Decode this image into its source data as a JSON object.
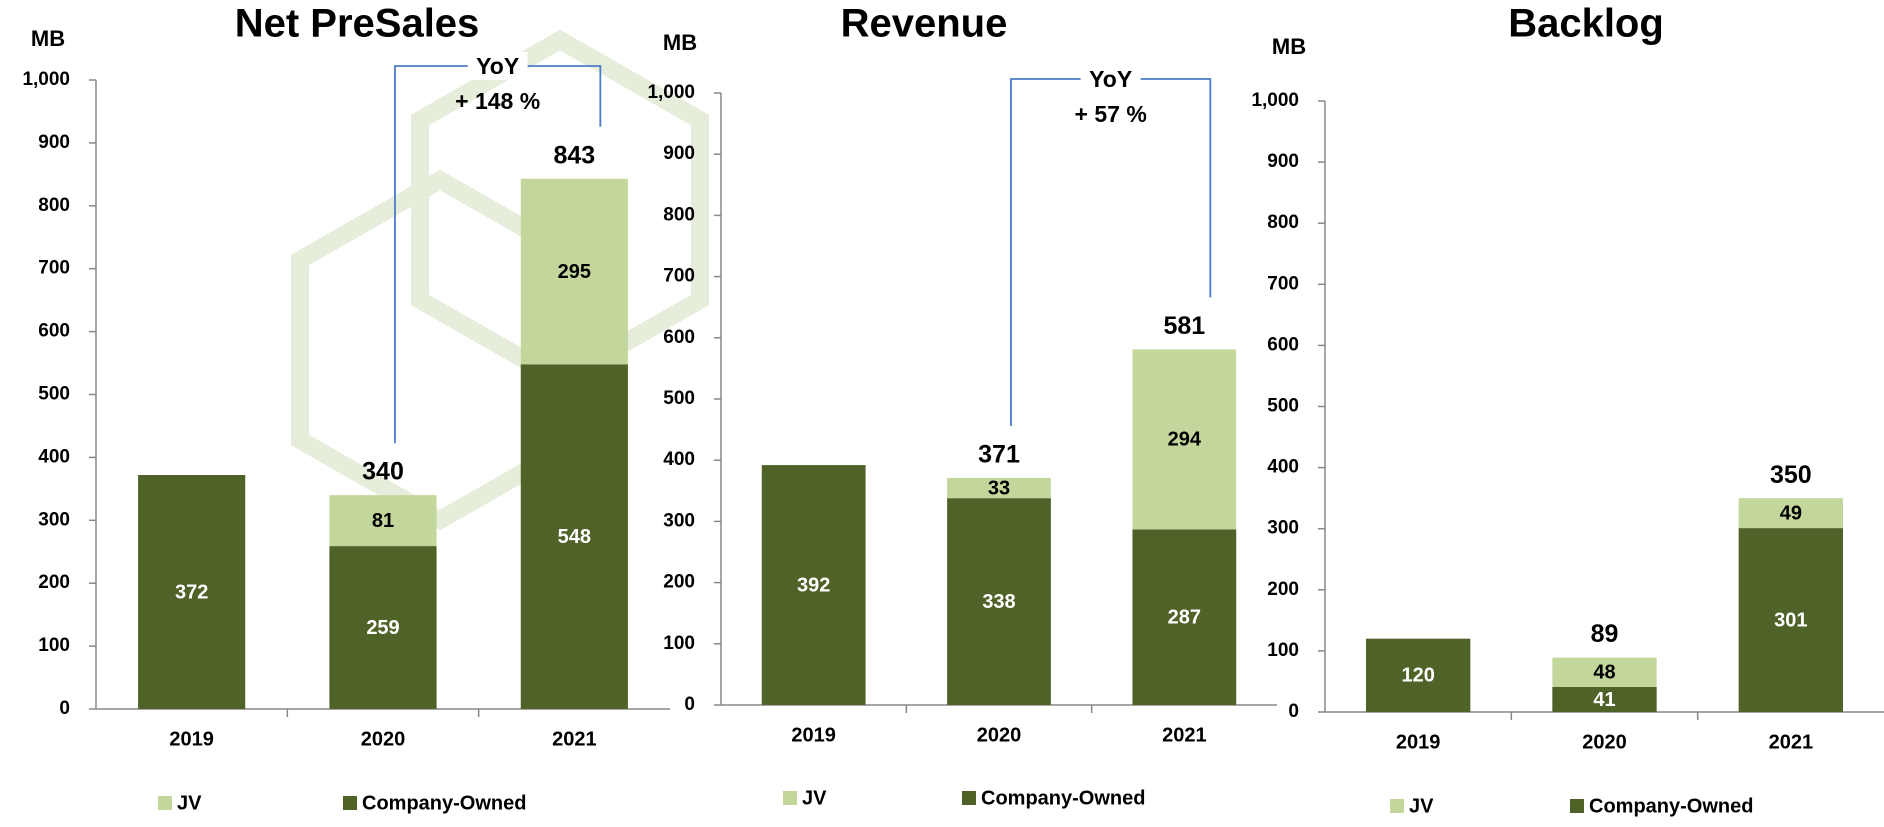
{
  "chart_data": [
    {
      "type": "bar",
      "stacked": true,
      "title": "Net  PreSales",
      "ylabel": "MB",
      "categories": [
        "2019",
        "2020",
        "2021"
      ],
      "series": [
        {
          "name": "JV",
          "color": "#c3d69b",
          "values": [
            null,
            81,
            295
          ]
        },
        {
          "name": "Company-Owned",
          "color": "#4f6228",
          "values": [
            372,
            259,
            548
          ]
        }
      ],
      "totals": [
        null,
        340,
        843
      ],
      "annotation": [
        "YoY",
        "+ 148 %"
      ],
      "ylim": [
        0,
        1000
      ],
      "yticks": [
        0,
        100,
        200,
        300,
        400,
        500,
        600,
        700,
        800,
        900,
        {
          "value": 1000,
          "label": "1,000"
        }
      ]
    },
    {
      "type": "bar",
      "stacked": true,
      "title": "Revenue",
      "ylabel": "MB",
      "categories": [
        "2019",
        "2020",
        "2021"
      ],
      "series": [
        {
          "name": "JV",
          "color": "#c3d69b",
          "values": [
            null,
            33,
            294
          ]
        },
        {
          "name": "Company-Owned",
          "color": "#4f6228",
          "values": [
            392,
            338,
            287
          ]
        }
      ],
      "totals": [
        null,
        371,
        581
      ],
      "annotation": [
        "YoY",
        "+ 57 %"
      ],
      "ylim": [
        0,
        1000
      ],
      "yticks": [
        0,
        100,
        200,
        300,
        400,
        500,
        600,
        700,
        800,
        900,
        {
          "value": 1000,
          "label": "1,000"
        }
      ]
    },
    {
      "type": "bar",
      "stacked": true,
      "title": "Backlog",
      "ylabel": "MB",
      "categories": [
        "2019",
        "2020",
        "2021"
      ],
      "series": [
        {
          "name": "JV",
          "color": "#c3d69b",
          "values": [
            null,
            48,
            49
          ]
        },
        {
          "name": "Company-Owned",
          "color": "#4f6228",
          "values": [
            120,
            41,
            301
          ]
        }
      ],
      "totals": [
        null,
        89,
        350
      ],
      "ylim": [
        0,
        1000
      ],
      "yticks": [
        0,
        100,
        200,
        300,
        400,
        500,
        600,
        700,
        800,
        900,
        {
          "value": 1000,
          "label": "1,000"
        }
      ]
    }
  ]
}
